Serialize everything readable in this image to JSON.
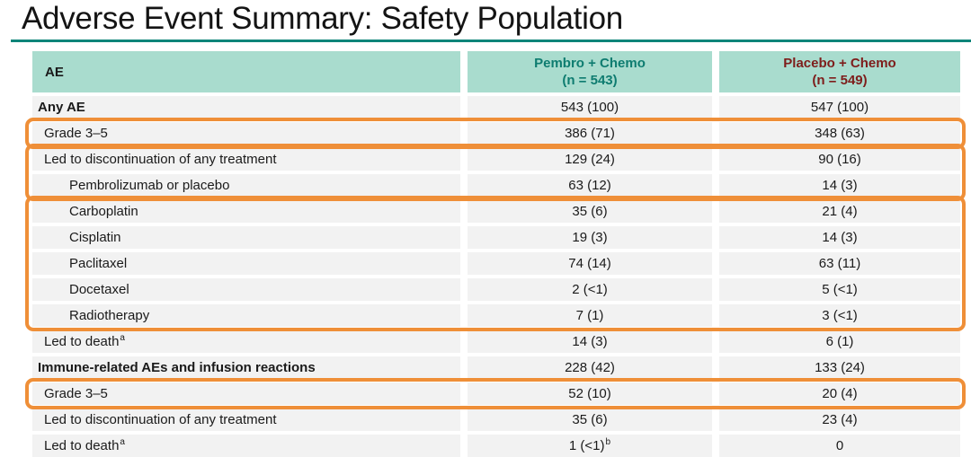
{
  "title": "Adverse Event Summary: Safety Population",
  "colors": {
    "title_rule_teal": "#0e8579",
    "header_bg_mint": "#a9dcce",
    "pembro_header_text": "#0e7c70",
    "placebo_header_text": "#7e1d1b",
    "row_bg": "#f2f2f2",
    "body_text": "#1a1a1a",
    "highlight_orange": "#ef8f38"
  },
  "table": {
    "header": {
      "col1": "AE",
      "col2_line1": "Pembro + Chemo",
      "col2_line2": "(n = 543)",
      "col3_line1": "Placebo + Chemo",
      "col3_line2": "(n = 549)"
    },
    "rows": [
      {
        "label": "Any AE",
        "bold": true,
        "indent": 0,
        "pembro": "543 (100)",
        "placebo": "547 (100)"
      },
      {
        "label": "Grade 3–5",
        "bold": false,
        "indent": 1,
        "pembro": "386 (71)",
        "placebo": "348 (63)"
      },
      {
        "label": "Led to discontinuation of any treatment",
        "bold": false,
        "indent": 1,
        "pembro": "129 (24)",
        "placebo": "90 (16)"
      },
      {
        "label": "Pembrolizumab or placebo",
        "bold": false,
        "indent": 2,
        "pembro": "63 (12)",
        "placebo": "14 (3)"
      },
      {
        "label": "Carboplatin",
        "bold": false,
        "indent": 2,
        "pembro": "35 (6)",
        "placebo": "21 (4)"
      },
      {
        "label": "Cisplatin",
        "bold": false,
        "indent": 2,
        "pembro": "19 (3)",
        "placebo": "14 (3)"
      },
      {
        "label": "Paclitaxel",
        "bold": false,
        "indent": 2,
        "pembro": "74 (14)",
        "placebo": "63 (11)"
      },
      {
        "label": "Docetaxel",
        "bold": false,
        "indent": 2,
        "pembro": "2 (<1)",
        "placebo": "5 (<1)"
      },
      {
        "label": "Radiotherapy",
        "bold": false,
        "indent": 2,
        "pembro": "7 (1)",
        "placebo": "3 (<1)"
      },
      {
        "label": "Led to death",
        "label_sup": "a",
        "bold": false,
        "indent": 1,
        "pembro": "14 (3)",
        "placebo": "6 (1)"
      },
      {
        "label": "Immune-related AEs and infusion reactions",
        "bold": true,
        "indent": 0,
        "pembro": "228 (42)",
        "placebo": "133 (24)"
      },
      {
        "label": "Grade 3–5",
        "bold": false,
        "indent": 1,
        "pembro": "52 (10)",
        "placebo": "20 (4)"
      },
      {
        "label": "Led to discontinuation of any treatment",
        "bold": false,
        "indent": 1,
        "pembro": "35 (6)",
        "placebo": "23 (4)"
      },
      {
        "label": "Led to death",
        "label_sup": "a",
        "bold": false,
        "indent": 1,
        "pembro": "1 (<1)",
        "pembro_sup": "b",
        "placebo": "0"
      }
    ],
    "highlight_boxes": [
      {
        "from": 1,
        "to": 1
      },
      {
        "from": 2,
        "to": 3
      },
      {
        "from": 4,
        "to": 8
      },
      {
        "from": 11,
        "to": 11
      }
    ]
  }
}
